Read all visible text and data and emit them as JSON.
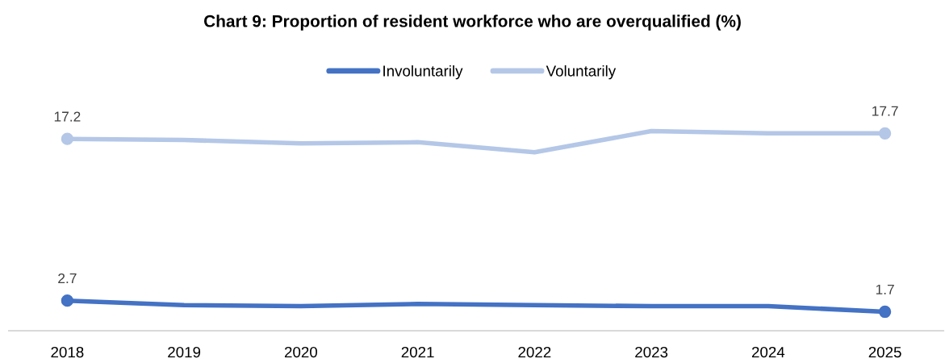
{
  "chart_data": {
    "type": "line",
    "title": "Chart 9: Proportion of resident workforce who are overqualified (%)",
    "categories": [
      "2018",
      "2019",
      "2020",
      "2021",
      "2022",
      "2023",
      "2024",
      "2025"
    ],
    "series": [
      {
        "name": "Involuntarily",
        "color": "#4472c4",
        "values": [
          2.7,
          2.3,
          2.2,
          2.4,
          2.3,
          2.2,
          2.2,
          1.7
        ],
        "value_labels": [
          "2.7",
          null,
          null,
          null,
          null,
          null,
          null,
          "1.7"
        ]
      },
      {
        "name": "Voluntarily",
        "color": "#b4c7e7",
        "values": [
          17.2,
          17.1,
          16.8,
          16.9,
          16.0,
          17.9,
          17.7,
          17.7
        ],
        "value_labels": [
          "17.2",
          null,
          null,
          null,
          null,
          null,
          null,
          "17.7"
        ]
      }
    ],
    "tick_labels": "x",
    "grid": false,
    "legend": "top",
    "line_style": "solid"
  }
}
